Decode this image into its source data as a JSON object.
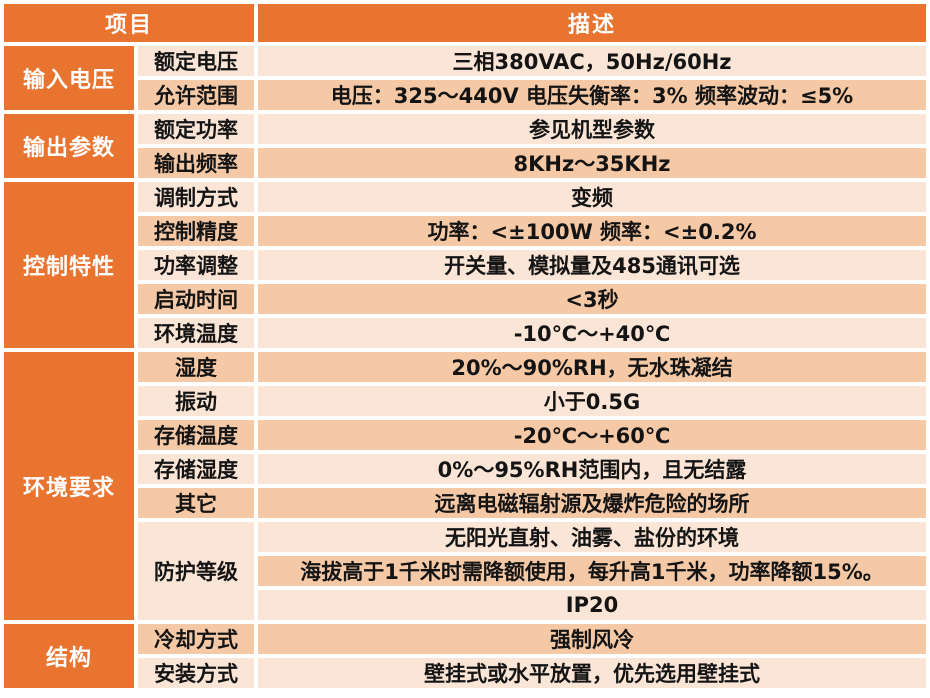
{
  "colors": {
    "accent_orange": "#E8742F",
    "band_light": "#FBE5D6",
    "band_dark": "#F6C9A6",
    "header_text": "#FFFFFF",
    "cell_text": "#141414",
    "grid": "#FFFFFF"
  },
  "table": {
    "header": {
      "item": "项目",
      "desc": "描述"
    },
    "sections": [
      {
        "group": "输入电压",
        "items": [
          {
            "label": "额定电压",
            "value": "三相380VAC，50Hz/60Hz"
          },
          {
            "label": "允许范围",
            "value": "电压：325～440V 电压失衡率：3% 频率波动：≤5%"
          }
        ]
      },
      {
        "group": "输出参数",
        "items": [
          {
            "label": "额定功率",
            "value": "参见机型参数"
          },
          {
            "label": "输出频率",
            "value": "8KHz～35KHz"
          }
        ]
      },
      {
        "group": "控制特性",
        "items": [
          {
            "label": "调制方式",
            "value": "变频"
          },
          {
            "label": "控制精度",
            "value": "功率：<±100W 频率：<±0.2%"
          },
          {
            "label": "功率调整",
            "value": "开关量、模拟量及485通讯可选"
          },
          {
            "label": "启动时间",
            "value": "<3秒"
          },
          {
            "label": "环境温度",
            "value": "-10℃～+40℃"
          }
        ]
      },
      {
        "group": "环境要求",
        "items": [
          {
            "label": "湿度",
            "value": "20%～90%RH，无水珠凝结"
          },
          {
            "label": "振动",
            "value": "小于0.5G"
          },
          {
            "label": "存储温度",
            "value": "-20℃～+60℃"
          },
          {
            "label": "存储湿度",
            "value": "0%～95%RH范围内，且无结露"
          },
          {
            "label": "其它",
            "value": "远离电磁辐射源及爆炸危险的场所"
          },
          {
            "label": "防护等级",
            "values": [
              "无阳光直射、油雾、盐份的环境",
              "海拔高于1千米时需降额使用，每升高1千米，功率降额15%。",
              "IP20"
            ]
          }
        ]
      },
      {
        "group": "结构",
        "items": [
          {
            "label": "冷却方式",
            "value": "强制风冷"
          },
          {
            "label": "安装方式",
            "value": "壁挂式或水平放置，优先选用壁挂式"
          }
        ]
      }
    ]
  }
}
